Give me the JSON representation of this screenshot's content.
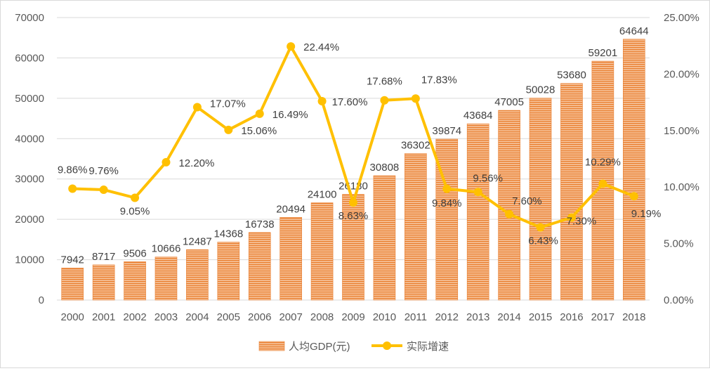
{
  "chart_data": {
    "type": "bar",
    "categories": [
      "2000",
      "2001",
      "2002",
      "2003",
      "2004",
      "2005",
      "2006",
      "2007",
      "2008",
      "2009",
      "2010",
      "2011",
      "2012",
      "2013",
      "2014",
      "2015",
      "2016",
      "2017",
      "2018"
    ],
    "series": [
      {
        "name": "人均GDP(元)",
        "type": "bar",
        "axis": "left",
        "color": "#ED7D31",
        "values": [
          7942,
          8717,
          9506,
          10666,
          12487,
          14368,
          16738,
          20494,
          24100,
          26180,
          30808,
          36302,
          39874,
          43684,
          47005,
          50028,
          53680,
          59201,
          64644
        ],
        "labels": [
          "7942",
          "8717",
          "9506",
          "10666",
          "12487",
          "14368",
          "16738",
          "20494",
          "24100",
          "26180",
          "30808",
          "36302",
          "39874",
          "43684",
          "47005",
          "50028",
          "53680",
          "59201",
          "64644"
        ]
      },
      {
        "name": "实际增速",
        "type": "line",
        "axis": "right",
        "color": "#FFC000",
        "values": [
          9.86,
          9.76,
          9.05,
          12.2,
          17.07,
          15.06,
          16.49,
          22.44,
          17.6,
          8.63,
          17.68,
          17.83,
          9.84,
          9.56,
          7.6,
          6.43,
          7.3,
          10.29,
          9.19
        ],
        "labels": [
          "9.86%",
          "9.76%",
          "9.05%",
          "12.20%",
          "17.07%",
          "15.06%",
          "16.49%",
          "22.44%",
          "17.60%",
          "8.63%",
          "17.68%",
          "17.83%",
          "9.84%",
          "9.56%",
          "7.60%",
          "6.43%",
          "7.30%",
          "10.29%",
          "9.19%"
        ]
      }
    ],
    "y_left": {
      "lim": [
        0,
        70000
      ],
      "ticks": [
        0,
        10000,
        20000,
        30000,
        40000,
        50000,
        60000,
        70000
      ],
      "tick_labels": [
        "0",
        "10000",
        "20000",
        "30000",
        "40000",
        "50000",
        "60000",
        "70000"
      ]
    },
    "y_right": {
      "lim": [
        0,
        25
      ],
      "ticks": [
        0,
        5,
        10,
        15,
        20,
        25
      ],
      "tick_labels": [
        "0.00%",
        "5.00%",
        "10.00%",
        "15.00%",
        "20.00%",
        "25.00%"
      ]
    },
    "grid": true,
    "legend_position": "bottom",
    "legend": [
      "人均GDP(元)",
      "实际增速"
    ]
  }
}
